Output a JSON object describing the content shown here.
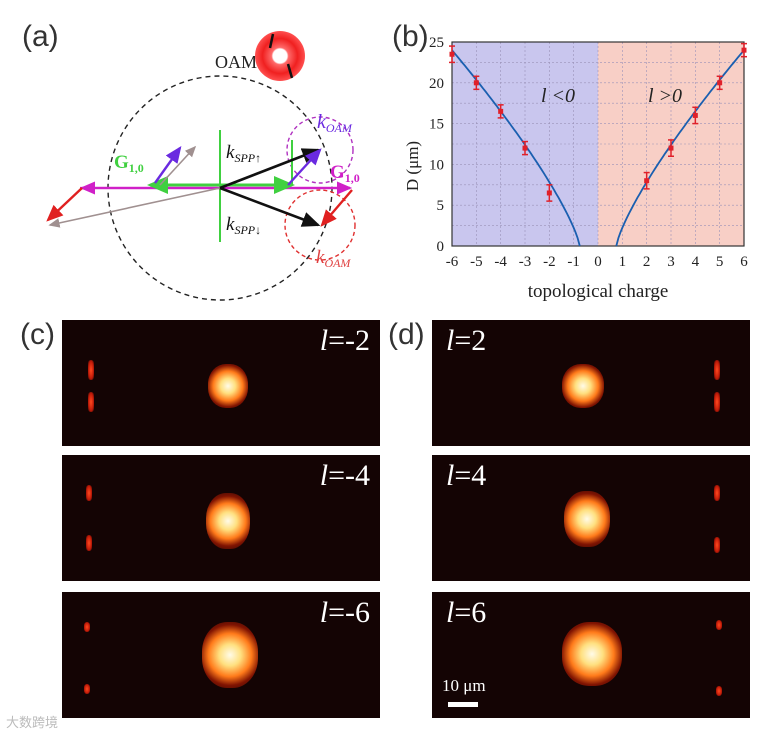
{
  "labels": {
    "a": "(a)",
    "b": "(b)",
    "c": "(c)",
    "d": "(d)"
  },
  "diagram": {
    "oam": "OAM",
    "k_oam_top": "k",
    "k_oam_top_sub": "OAM",
    "k_spp_up": "k",
    "k_spp_up_sub": "SPP↑",
    "k_spp_down": "k",
    "k_spp_down_sub": "SPP↓",
    "g_left": "G",
    "g_left_sub": "1,0",
    "g_right": "G",
    "g_right_sub": "1,0",
    "k_oam_bottom": "k",
    "k_oam_bottom_sub": "OAM"
  },
  "chart_data": {
    "type": "scatter",
    "ylabel": "D (μm)",
    "xlabel": "topological charge",
    "xlim": [
      -6,
      6
    ],
    "ylim": [
      0,
      25
    ],
    "xticks": [
      "-6",
      "-5",
      "-4",
      "-3",
      "-2",
      "-1",
      "0",
      "1",
      "2",
      "3",
      "4",
      "5",
      "6"
    ],
    "yticks": [
      "0",
      "5",
      "10",
      "15",
      "20",
      "25"
    ],
    "region_left": "l <0",
    "region_right": "l >0",
    "region_colors": {
      "negative": "#c9c6ee",
      "positive": "#f8cfc6"
    },
    "points": {
      "x": [
        -6,
        -5,
        -4,
        -3,
        -2,
        2,
        3,
        4,
        5,
        6
      ],
      "y": [
        23.5,
        20,
        16.5,
        12,
        6.5,
        8,
        12,
        16,
        20,
        24
      ],
      "err": [
        1,
        0.8,
        0.8,
        0.8,
        1,
        1,
        1,
        1,
        0.8,
        0.8
      ]
    },
    "curve_color": "#1a5fb0",
    "marker_color": "#e0202a"
  },
  "panels_c": [
    {
      "l": "l",
      "value": "=-2"
    },
    {
      "l": "l",
      "value": "=-4"
    },
    {
      "l": "l",
      "value": "=-6"
    }
  ],
  "panels_d": [
    {
      "l": "l",
      "value": "=2"
    },
    {
      "l": "l",
      "value": "=4"
    },
    {
      "l": "l",
      "value": "=6"
    }
  ],
  "scale_bar": "10 μm",
  "watermark": "大数跨境"
}
